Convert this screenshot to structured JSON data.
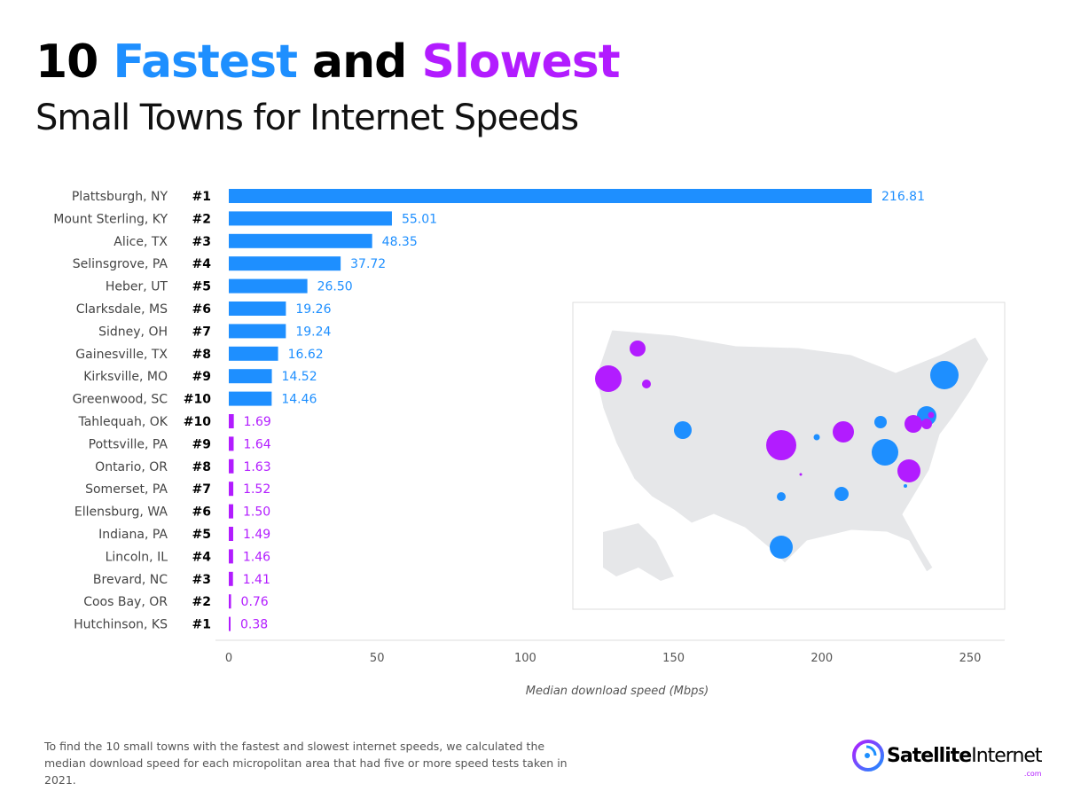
{
  "title": {
    "num": "10",
    "fast": "Fastest",
    "and": "and",
    "slow": "Slowest",
    "subtitle": "Small Towns for Internet Speeds"
  },
  "colors": {
    "fast": "#1e8fff",
    "slow": "#b21cff",
    "map": "#e6e7e9"
  },
  "chart_data": {
    "type": "bar",
    "orientation": "horizontal",
    "xlabel": "Median download speed (Mbps)",
    "xlim": [
      0,
      260
    ],
    "xticks": [
      0,
      50,
      100,
      150,
      200,
      250
    ],
    "grid": false,
    "rows": [
      {
        "town": "Plattsburgh, NY",
        "rank": "#1",
        "value": 216.81,
        "label": "216.81",
        "group": "fast"
      },
      {
        "town": "Mount Sterling, KY",
        "rank": "#2",
        "value": 55.01,
        "label": "55.01",
        "group": "fast"
      },
      {
        "town": "Alice,  TX",
        "rank": "#3",
        "value": 48.35,
        "label": "48.35",
        "group": "fast"
      },
      {
        "town": "Selinsgrove, PA",
        "rank": "#4",
        "value": 37.72,
        "label": "37.72",
        "group": "fast"
      },
      {
        "town": "Heber, UT",
        "rank": "#5",
        "value": 26.5,
        "label": "26.50",
        "group": "fast"
      },
      {
        "town": "Clarksdale, MS",
        "rank": "#6",
        "value": 19.26,
        "label": "19.26",
        "group": "fast"
      },
      {
        "town": "Sidney, OH",
        "rank": "#7",
        "value": 19.24,
        "label": "19.24",
        "group": "fast"
      },
      {
        "town": "Gainesville, TX",
        "rank": "#8",
        "value": 16.62,
        "label": "16.62",
        "group": "fast"
      },
      {
        "town": "Kirksville, MO",
        "rank": "#9",
        "value": 14.52,
        "label": "14.52",
        "group": "fast"
      },
      {
        "town": "Greenwood, SC",
        "rank": "#10",
        "value": 14.46,
        "label": "14.46",
        "group": "fast"
      },
      {
        "town": "Tahlequah, OK",
        "rank": "#10",
        "value": 1.69,
        "label": "1.69",
        "group": "slow"
      },
      {
        "town": "Pottsville, PA",
        "rank": "#9",
        "value": 1.64,
        "label": "1.64",
        "group": "slow"
      },
      {
        "town": "Ontario, OR",
        "rank": "#8",
        "value": 1.63,
        "label": "1.63",
        "group": "slow"
      },
      {
        "town": "Somerset, PA",
        "rank": "#7",
        "value": 1.52,
        "label": "1.52",
        "group": "slow"
      },
      {
        "town": "Ellensburg, WA",
        "rank": "#6",
        "value": 1.5,
        "label": "1.50",
        "group": "slow"
      },
      {
        "town": "Indiana, PA",
        "rank": "#5",
        "value": 1.49,
        "label": "1.49",
        "group": "slow"
      },
      {
        "town": "Lincoln, IL",
        "rank": "#4",
        "value": 1.46,
        "label": "1.46",
        "group": "slow"
      },
      {
        "town": "Brevard, NC",
        "rank": "#3",
        "value": 1.41,
        "label": "1.41",
        "group": "slow"
      },
      {
        "town": "Coos Bay, OR",
        "rank": "#2",
        "value": 0.76,
        "label": "0.76",
        "group": "slow"
      },
      {
        "town": "Hutchinson, KS",
        "rank": "#1",
        "value": 0.38,
        "label": "0.38",
        "group": "slow"
      }
    ]
  },
  "note": "To find the 10 small towns with the fastest and slowest internet speeds, we calculated the median download speed for each micropolitan area that had five or more speed tests taken in 2021.",
  "logo": {
    "bold": "Satellite",
    "light": "Internet",
    "com": ".com"
  }
}
